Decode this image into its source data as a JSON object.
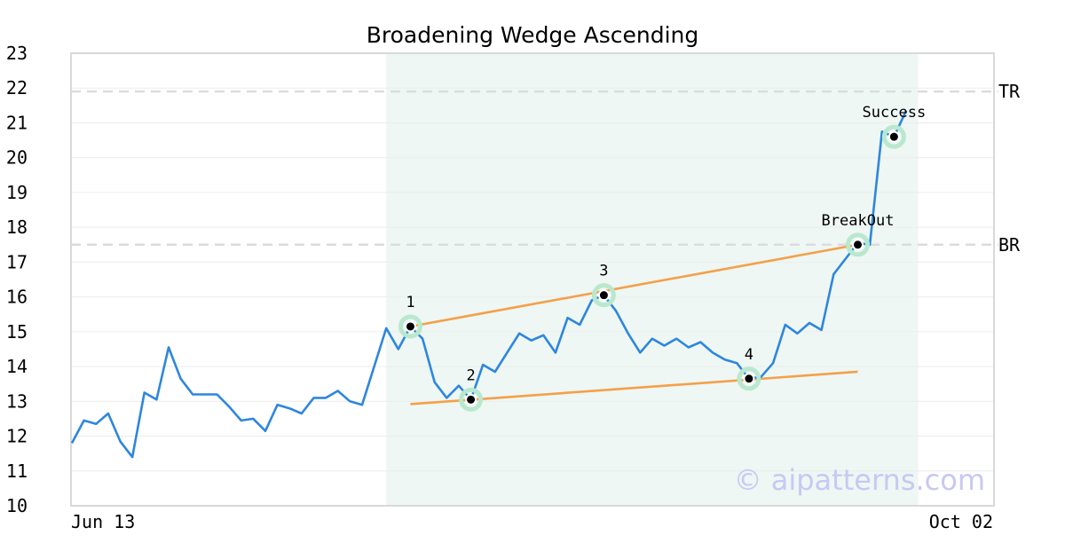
{
  "chart_data": {
    "type": "line",
    "title": "Broadening Wedge Ascending",
    "xlabel": "",
    "ylabel": "",
    "ylim": [
      10,
      23
    ],
    "y_ticks": [
      10,
      11,
      12,
      13,
      14,
      15,
      16,
      17,
      18,
      19,
      20,
      21,
      22,
      23
    ],
    "x_tick_labels": [
      "Jun 13",
      "Oct 02"
    ],
    "grid": "horizontal",
    "series": [
      {
        "color": "#2e86de",
        "values": [
          11.8,
          12.45,
          12.35,
          12.65,
          11.85,
          11.4,
          13.25,
          13.05,
          14.55,
          13.65,
          13.2,
          13.2,
          13.2,
          12.85,
          12.45,
          12.5,
          12.15,
          12.9,
          12.8,
          12.65,
          13.1,
          13.1,
          13.3,
          13.0,
          12.9,
          14.0,
          15.1,
          14.5,
          15.15,
          14.8,
          13.55,
          13.1,
          13.45,
          13.05,
          14.05,
          13.85,
          14.4,
          14.95,
          14.75,
          14.9,
          14.4,
          15.4,
          15.2,
          15.9,
          16.05,
          15.6,
          14.95,
          14.4,
          14.8,
          14.6,
          14.8,
          14.55,
          14.7,
          14.4,
          14.2,
          14.1,
          13.65,
          13.7,
          14.1,
          15.2,
          14.95,
          15.25,
          15.05,
          16.65,
          17.1,
          17.55,
          17.5,
          20.75,
          20.6,
          21.35
        ]
      }
    ],
    "trendlines": [
      {
        "name": "upper",
        "color": "#f4a04a",
        "from": {
          "index": 28,
          "value": 15.15
        },
        "to": {
          "index": 65,
          "value": 17.5
        }
      },
      {
        "name": "lower",
        "color": "#f4a04a",
        "from": {
          "index": 28,
          "value": 12.92
        },
        "to": {
          "index": 65,
          "value": 13.85
        }
      }
    ],
    "highlight_region": {
      "from_index": 26,
      "to_index": 70,
      "color": "#eef7f3"
    },
    "levels": [
      {
        "label": "TR",
        "value": 21.9
      },
      {
        "label": "BR",
        "value": 17.5
      }
    ],
    "annotations": [
      {
        "label": "1",
        "index": 28,
        "value": 15.15
      },
      {
        "label": "2",
        "index": 33,
        "value": 13.05
      },
      {
        "label": "3",
        "index": 44,
        "value": 16.05
      },
      {
        "label": "4",
        "index": 56,
        "value": 13.65
      },
      {
        "label": "BreakOut",
        "index": 65,
        "value": 17.5
      },
      {
        "label": "Success",
        "index": 68,
        "value": 20.6
      }
    ]
  },
  "watermark": "© aipatterns.com"
}
